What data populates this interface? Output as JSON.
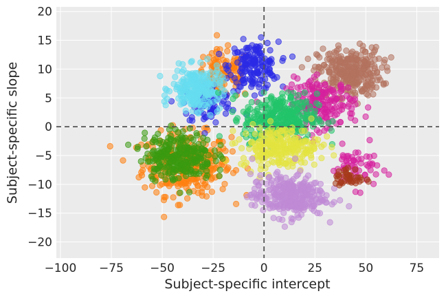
{
  "chart_data": {
    "type": "scatter",
    "title": "",
    "xlabel": "Subject-specific intercept",
    "ylabel": "Subject-specific slope",
    "xlim": [
      -102,
      86
    ],
    "ylim": [
      -22.8,
      20.8
    ],
    "xticks": [
      -100,
      -75,
      -50,
      -25,
      0,
      25,
      50,
      75
    ],
    "yticks": [
      -20,
      -15,
      -10,
      -5,
      0,
      5,
      10,
      15,
      20
    ],
    "xtick_labels": [
      "−100",
      "−75",
      "−50",
      "−25",
      "0",
      "25",
      "50",
      "75"
    ],
    "ytick_labels": [
      "−20",
      "−15",
      "−10",
      "−5",
      "0",
      "5",
      "10",
      "15",
      "20"
    ],
    "grid": true,
    "background": "#ebebeb",
    "reference_lines": [
      {
        "orientation": "vertical",
        "value": 0,
        "style": "dashed",
        "color": "#555555"
      },
      {
        "orientation": "horizontal",
        "value": 0,
        "style": "dashed",
        "color": "#555555"
      }
    ],
    "point_alpha": 0.55,
    "clusters": [
      {
        "color": "#ff7f0e",
        "center": [
          -38,
          -6.5
        ],
        "spread": [
          18,
          4.5
        ],
        "count": 320
      },
      {
        "color": "#ff7f0e",
        "center": [
          -20,
          9
        ],
        "spread": [
          12,
          3.5
        ],
        "count": 120
      },
      {
        "color": "#2a2ae6",
        "center": [
          -5,
          10.5
        ],
        "spread": [
          10,
          3.5
        ],
        "count": 160
      },
      {
        "color": "#2a2ae6",
        "center": [
          -28,
          4
        ],
        "spread": [
          10,
          3
        ],
        "count": 90
      },
      {
        "color": "#b3725e",
        "center": [
          42,
          9.5
        ],
        "spread": [
          13,
          3.5
        ],
        "count": 300
      },
      {
        "color": "#d6209e",
        "center": [
          28,
          4
        ],
        "spread": [
          14,
          3.5
        ],
        "count": 200
      },
      {
        "color": "#d6209e",
        "center": [
          45,
          -7
        ],
        "spread": [
          10,
          3
        ],
        "count": 60
      },
      {
        "color": "#66ddf0",
        "center": [
          -33,
          6.5
        ],
        "spread": [
          10,
          3
        ],
        "count": 240
      },
      {
        "color": "#22c46a",
        "center": [
          8,
          1.5
        ],
        "spread": [
          15,
          3.5
        ],
        "count": 320
      },
      {
        "color": "#e3e340",
        "center": [
          8,
          -3.5
        ],
        "spread": [
          16,
          3
        ],
        "count": 240
      },
      {
        "color": "#c08ad6",
        "center": [
          12,
          -12
        ],
        "spread": [
          15,
          3
        ],
        "count": 300
      },
      {
        "color": "#3a9a10",
        "center": [
          -42,
          -5
        ],
        "spread": [
          14,
          3.5
        ],
        "count": 280
      },
      {
        "color": "#a53a1a",
        "center": [
          42,
          -9
        ],
        "spread": [
          6,
          1.5
        ],
        "count": 40
      }
    ]
  }
}
